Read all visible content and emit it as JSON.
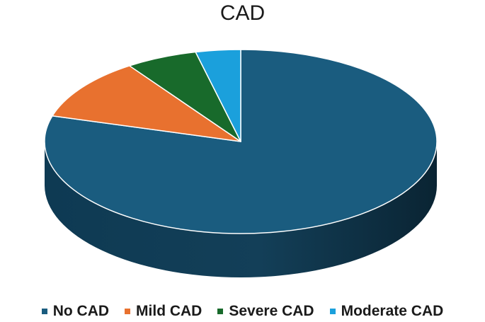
{
  "chart_data": {
    "type": "pie",
    "title": "CAD",
    "categories": [
      "No CAD",
      "Mild CAD",
      "Severe CAD",
      "Moderate CAD"
    ],
    "values": [
      79.5,
      10.9,
      5.9,
      3.7
    ],
    "colors": [
      "#1a5c7f",
      "#e8712f",
      "#186a2b",
      "#1ba0dc"
    ],
    "legend_position": "bottom"
  }
}
